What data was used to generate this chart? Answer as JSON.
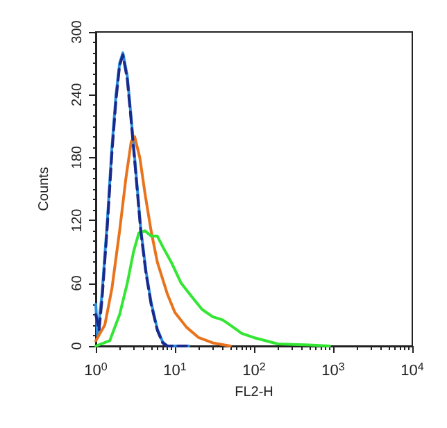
{
  "chart_data": {
    "type": "line",
    "xlabel": "FL2-H",
    "ylabel": "Counts",
    "log": "x",
    "grid": false,
    "marker": "none",
    "xlim": [
      1,
      10000
    ],
    "xticks": [
      {
        "value": 1,
        "label": "10$^{0}$"
      },
      {
        "value": 10,
        "label": "10$^{1}$"
      },
      {
        "value": 100,
        "label": "10$^{2}$"
      },
      {
        "value": 1000,
        "label": "10$^{3}$"
      },
      {
        "value": 10000,
        "label": "10$^{4}$"
      }
    ],
    "ylim": [
      0,
      300
    ],
    "yticks": [
      0,
      60,
      120,
      180,
      240,
      300
    ],
    "series": [
      {
        "color": "#1a2a8c",
        "line_style": "dashed",
        "x": [
          1,
          1.1,
          1.2,
          1.4,
          1.6,
          1.8,
          2.0,
          2.2,
          2.5,
          2.8,
          3.2,
          3.7,
          4.3,
          5,
          6,
          7,
          8,
          14
        ],
        "values": [
          30,
          15,
          45,
          115,
          185,
          235,
          268,
          278,
          255,
          215,
          165,
          110,
          70,
          40,
          15,
          3,
          0,
          0
        ]
      },
      {
        "color": "#2a8fe0",
        "line_style": "solid",
        "x": [
          1,
          1.05,
          1.2,
          1.4,
          1.6,
          1.8,
          2.0,
          2.2,
          2.5,
          2.8,
          3.2,
          3.7,
          4.3,
          5,
          6,
          7,
          8,
          15
        ],
        "values": [
          40,
          10,
          50,
          120,
          190,
          240,
          270,
          280,
          258,
          218,
          168,
          112,
          72,
          42,
          16,
          4,
          0,
          0
        ]
      },
      {
        "color": "#e8731c",
        "line_style": "solid",
        "x": [
          1,
          1.3,
          1.6,
          2,
          2.4,
          2.8,
          3.1,
          3.6,
          4.2,
          5,
          6,
          8,
          10,
          14,
          20,
          30,
          50
        ],
        "values": [
          5,
          20,
          55,
          110,
          160,
          195,
          200,
          180,
          145,
          110,
          80,
          50,
          32,
          18,
          8,
          3,
          0
        ]
      },
      {
        "color": "#33e633",
        "line_style": "solid",
        "x": [
          1,
          1.5,
          2,
          2.5,
          3,
          3.5,
          4.2,
          5,
          6,
          7,
          9,
          12,
          16,
          22,
          30,
          40,
          50,
          70,
          100,
          200,
          500,
          900
        ],
        "values": [
          0,
          5,
          30,
          60,
          90,
          108,
          110,
          105,
          105,
          95,
          80,
          60,
          48,
          35,
          28,
          25,
          20,
          12,
          8,
          2,
          1,
          0
        ]
      }
    ]
  }
}
